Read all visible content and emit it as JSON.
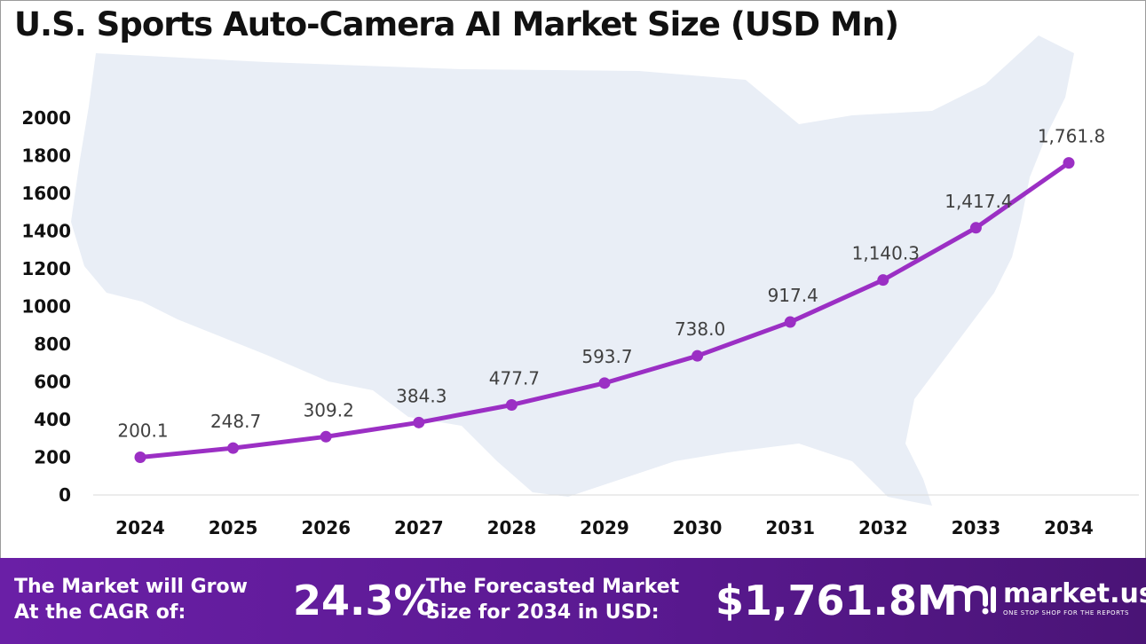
{
  "title": "U.S. Sports Auto-Camera AI Market Size (USD Mn)",
  "colors": {
    "line": "#9b2fc4",
    "marker": "#9b2fc4",
    "map_fill": "#e9eef6",
    "footer_bg": "#5a1991"
  },
  "chart_data": {
    "type": "line",
    "title": "U.S. Sports Auto-Camera AI Market Size (USD Mn)",
    "xlabel": "",
    "ylabel": "",
    "categories": [
      "2024",
      "2025",
      "2026",
      "2027",
      "2028",
      "2029",
      "2030",
      "2031",
      "2032",
      "2033",
      "2034"
    ],
    "values": [
      200.1,
      248.7,
      309.2,
      384.3,
      477.7,
      593.7,
      738.0,
      917.4,
      1140.3,
      1417.4,
      1761.8
    ],
    "data_labels": [
      "200.1",
      "248.7",
      "309.2",
      "384.3",
      "477.7",
      "593.7",
      "738.0",
      "917.4",
      "1,140.3",
      "1,417.4",
      "1,761.8"
    ],
    "ylim": [
      0,
      2000
    ],
    "yticks": [
      "0",
      "200",
      "400",
      "600",
      "800",
      "1000",
      "1200",
      "1400",
      "1600",
      "1800",
      "2000"
    ],
    "grid": false,
    "legend": "none"
  },
  "footer": {
    "cagr_label_line1": "The Market will Grow",
    "cagr_label_line2": "At the CAGR of:",
    "cagr_value": "24.3%",
    "forecast_label_line1": "The Forecasted Market",
    "forecast_label_line2": "Size for 2034 in USD:",
    "forecast_value": "$1,761.8M",
    "brand_name": "market.us",
    "brand_tagline": "ONE STOP SHOP FOR THE REPORTS",
    "brand_icon": "market-us-logo-icon"
  }
}
